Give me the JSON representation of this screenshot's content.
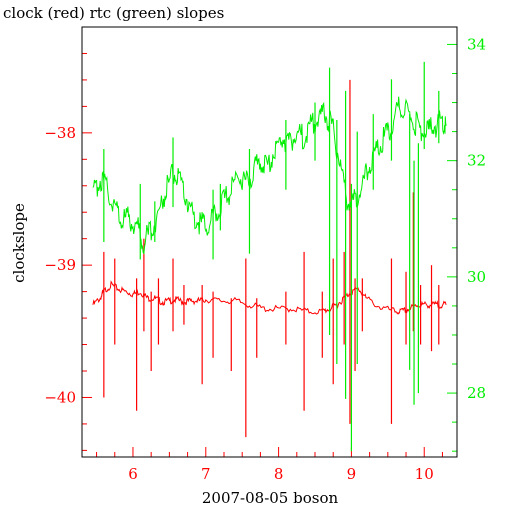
{
  "chart_data": {
    "type": "line",
    "title": "clock (red) rtc (green) slopes",
    "xlabel": "2007-08-05 boson",
    "ylabel": "clockslope",
    "y2label": "",
    "xlim": [
      5.3,
      10.45
    ],
    "ylim": [
      -40.45,
      -37.2
    ],
    "y2lim": [
      26.9,
      34.3
    ],
    "x_ticks": [
      6,
      7,
      8,
      9,
      10
    ],
    "x_tick_labels": [
      "6",
      "7",
      "8",
      "9",
      "10"
    ],
    "y_ticks": [
      -40,
      -39,
      -38
    ],
    "y_tick_labels": [
      "−40",
      "−39",
      "−38"
    ],
    "y2_ticks": [
      28,
      30,
      32,
      34
    ],
    "y2_tick_labels": [
      "28",
      "30",
      "32",
      "34"
    ],
    "grid": false,
    "legend": "none",
    "colors": {
      "clock": "#ff0000",
      "rtc": "#00ee00",
      "axis_left": "#ff0000",
      "axis_right": "#00ee00"
    },
    "series": [
      {
        "name": "clock",
        "axis": "left",
        "x": [
          5.45,
          5.55,
          5.6,
          5.7,
          5.8,
          5.9,
          6.0,
          6.1,
          6.2,
          6.3,
          6.4,
          6.5,
          6.6,
          6.7,
          6.8,
          6.9,
          7.0,
          7.2,
          7.4,
          7.6,
          7.8,
          8.0,
          8.2,
          8.4,
          8.6,
          8.7,
          8.8,
          8.9,
          9.0,
          9.1,
          9.2,
          9.4,
          9.6,
          9.7,
          9.8,
          9.9,
          10.0,
          10.1,
          10.2,
          10.3
        ],
        "y": [
          -39.3,
          -39.25,
          -39.2,
          -39.15,
          -39.18,
          -39.2,
          -39.22,
          -39.2,
          -39.25,
          -39.25,
          -39.28,
          -39.27,
          -39.26,
          -39.28,
          -39.27,
          -39.27,
          -39.26,
          -39.27,
          -39.27,
          -39.3,
          -39.33,
          -39.33,
          -39.33,
          -39.35,
          -39.35,
          -39.33,
          -39.3,
          -39.25,
          -39.2,
          -39.18,
          -39.25,
          -39.32,
          -39.35,
          -39.35,
          -39.33,
          -39.3,
          -39.3,
          -39.3,
          -39.3,
          -39.3
        ],
        "spikes": [
          {
            "x": 5.6,
            "lo": -40.0,
            "hi": -38.9
          },
          {
            "x": 5.75,
            "lo": -39.6,
            "hi": -38.95
          },
          {
            "x": 6.05,
            "lo": -40.1,
            "hi": -39.1
          },
          {
            "x": 6.15,
            "lo": -39.5,
            "hi": -38.8
          },
          {
            "x": 6.25,
            "lo": -39.8,
            "hi": -39.2
          },
          {
            "x": 6.35,
            "lo": -39.6,
            "hi": -39.1
          },
          {
            "x": 6.55,
            "lo": -39.5,
            "hi": -38.95
          },
          {
            "x": 6.7,
            "lo": -39.45,
            "hi": -39.15
          },
          {
            "x": 6.95,
            "lo": -39.9,
            "hi": -39.15
          },
          {
            "x": 7.1,
            "lo": -39.7,
            "hi": -39.2
          },
          {
            "x": 7.35,
            "lo": -39.8,
            "hi": -39.25
          },
          {
            "x": 7.55,
            "lo": -40.3,
            "hi": -38.95
          },
          {
            "x": 7.7,
            "lo": -39.7,
            "hi": -39.25
          },
          {
            "x": 8.1,
            "lo": -39.6,
            "hi": -39.2
          },
          {
            "x": 8.35,
            "lo": -40.1,
            "hi": -38.9
          },
          {
            "x": 8.6,
            "lo": -39.7,
            "hi": -39.2
          },
          {
            "x": 8.75,
            "lo": -39.9,
            "hi": -38.95
          },
          {
            "x": 8.9,
            "lo": -39.6,
            "hi": -38.9
          },
          {
            "x": 8.98,
            "lo": -40.2,
            "hi": -37.6
          },
          {
            "x": 9.05,
            "lo": -39.8,
            "hi": -39.1
          },
          {
            "x": 9.15,
            "lo": -39.5,
            "hi": -39.1
          },
          {
            "x": 9.55,
            "lo": -40.2,
            "hi": -38.95
          },
          {
            "x": 9.75,
            "lo": -39.6,
            "hi": -39.05
          },
          {
            "x": 9.85,
            "lo": -39.5,
            "hi": -38.45
          },
          {
            "x": 9.95,
            "lo": -39.6,
            "hi": -39.15
          },
          {
            "x": 10.1,
            "lo": -39.65,
            "hi": -39.0
          },
          {
            "x": 10.2,
            "lo": -39.6,
            "hi": -39.15
          }
        ]
      },
      {
        "name": "rtc",
        "axis": "right",
        "x": [
          5.45,
          5.55,
          5.65,
          5.75,
          5.85,
          5.95,
          6.05,
          6.15,
          6.25,
          6.35,
          6.45,
          6.55,
          6.65,
          6.75,
          6.85,
          6.95,
          7.05,
          7.15,
          7.25,
          7.35,
          7.45,
          7.55,
          7.65,
          7.75,
          7.85,
          7.95,
          8.05,
          8.15,
          8.25,
          8.35,
          8.45,
          8.55,
          8.65,
          8.75,
          8.85,
          8.95,
          9.05,
          9.15,
          9.25,
          9.35,
          9.45,
          9.55,
          9.65,
          9.75,
          9.85,
          9.95,
          10.05,
          10.15,
          10.25,
          10.3
        ],
        "y": [
          31.4,
          31.7,
          31.5,
          31.2,
          31.0,
          31.0,
          30.9,
          30.6,
          30.8,
          31.1,
          31.5,
          31.8,
          31.6,
          31.3,
          31.0,
          30.9,
          30.9,
          31.1,
          31.3,
          31.5,
          31.8,
          31.6,
          31.8,
          32.0,
          31.9,
          32.2,
          32.4,
          32.3,
          32.5,
          32.4,
          32.6,
          32.7,
          32.8,
          32.5,
          31.9,
          31.3,
          31.3,
          31.6,
          31.9,
          32.2,
          32.4,
          32.6,
          32.9,
          32.9,
          32.7,
          32.5,
          32.5,
          32.6,
          32.7,
          32.6
        ],
        "spikes": [
          {
            "x": 5.6,
            "lo": 30.6,
            "hi": 32.2
          },
          {
            "x": 6.1,
            "lo": 30.3,
            "hi": 31.6
          },
          {
            "x": 6.3,
            "lo": 30.6,
            "hi": 31.3
          },
          {
            "x": 6.55,
            "lo": 31.2,
            "hi": 32.4
          },
          {
            "x": 7.1,
            "lo": 30.3,
            "hi": 31.5
          },
          {
            "x": 7.2,
            "lo": 30.8,
            "hi": 31.6
          },
          {
            "x": 7.6,
            "lo": 30.4,
            "hi": 32.2
          },
          {
            "x": 8.1,
            "lo": 31.5,
            "hi": 32.7
          },
          {
            "x": 8.5,
            "lo": 32.0,
            "hi": 33.0
          },
          {
            "x": 8.7,
            "lo": 29.0,
            "hi": 33.6
          },
          {
            "x": 8.8,
            "lo": 28.5,
            "hi": 32.7
          },
          {
            "x": 8.92,
            "lo": 27.9,
            "hi": 33.2
          },
          {
            "x": 9.0,
            "lo": 27.0,
            "hi": 31.6
          },
          {
            "x": 9.08,
            "lo": 28.5,
            "hi": 32.5
          },
          {
            "x": 9.3,
            "lo": 31.5,
            "hi": 32.8
          },
          {
            "x": 9.55,
            "lo": 32.0,
            "hi": 33.4
          },
          {
            "x": 9.8,
            "lo": 28.4,
            "hi": 32.8
          },
          {
            "x": 9.86,
            "lo": 27.8,
            "hi": 32.0
          },
          {
            "x": 9.92,
            "lo": 28.0,
            "hi": 32.3
          },
          {
            "x": 10.0,
            "lo": 32.2,
            "hi": 33.7
          },
          {
            "x": 10.2,
            "lo": 32.3,
            "hi": 33.2
          }
        ]
      }
    ]
  }
}
